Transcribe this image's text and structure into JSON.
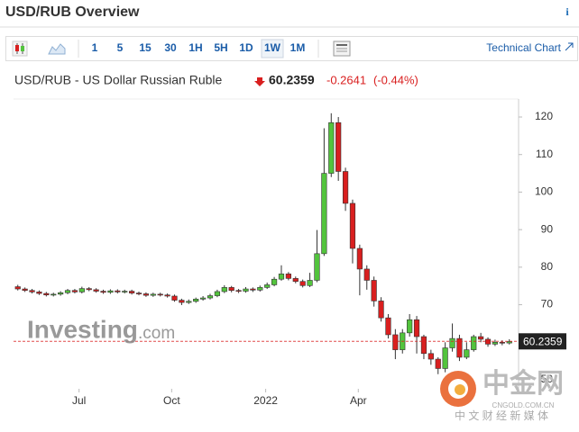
{
  "header": {
    "title": "USD/RUB Overview",
    "info": "i"
  },
  "toolbar": {
    "intervals": [
      "1",
      "5",
      "15",
      "30",
      "1H",
      "5H",
      "1D",
      "1W",
      "1M"
    ],
    "selected": "1W",
    "technical": "Technical Chart"
  },
  "quote": {
    "name": "USD/RUB - US Dollar Russian Ruble",
    "price": 60.2359,
    "change": -0.2641,
    "change_pct": "(-0.44%)"
  },
  "watermarks": {
    "investing": "Investing",
    "investing_suffix": ".com",
    "cngold": "中金网",
    "cngold_site": "CNGOLD.COM.CN",
    "cngold_tag": "中 文 财 经 新 媒 体"
  },
  "chart_data": {
    "type": "candlestick",
    "x": [
      0,
      1,
      2,
      3,
      4,
      5,
      6,
      7,
      8,
      9,
      10,
      11,
      12,
      13,
      14,
      15,
      16,
      17,
      18,
      19,
      20,
      21,
      22,
      23,
      24,
      25,
      26,
      27,
      28,
      29,
      30,
      31,
      32,
      33,
      34,
      35,
      36,
      37,
      38,
      39,
      40,
      41,
      42,
      43,
      44,
      45,
      46,
      47,
      48,
      49,
      50,
      51,
      52,
      53,
      54,
      55,
      56,
      57,
      58,
      59,
      60,
      61,
      62,
      63,
      64,
      65,
      66,
      67,
      68,
      69
    ],
    "series": {
      "open": [
        74.8,
        74.2,
        73.8,
        73.4,
        73.0,
        72.6,
        72.8,
        73.2,
        73.8,
        73.4,
        74.3,
        74.0,
        73.6,
        73.3,
        73.7,
        73.4,
        73.6,
        73.1,
        72.9,
        72.5,
        72.8,
        72.6,
        72.3,
        71.2,
        70.6,
        70.9,
        71.5,
        71.8,
        72.4,
        73.5,
        74.6,
        73.8,
        73.6,
        74.2,
        73.9,
        74.6,
        75.3,
        76.8,
        78.2,
        77.0,
        76.2,
        75.1,
        76.5,
        83.6,
        105.0,
        118.5,
        105.5,
        97.0,
        85.0,
        79.5,
        76.5,
        71.0,
        66.5,
        62.0,
        58.0,
        62.5,
        66.0,
        61.5,
        57.0,
        55.5,
        53.0,
        58.5,
        61.0,
        56.0,
        58.0,
        61.5,
        60.8,
        59.5,
        60.0,
        59.8
      ],
      "high": [
        75.3,
        74.6,
        74.2,
        73.8,
        73.4,
        73.2,
        73.6,
        74.2,
        74.2,
        74.8,
        74.7,
        74.4,
        74.0,
        74.1,
        74.1,
        74.0,
        74.0,
        73.5,
        73.3,
        73.2,
        73.2,
        73.0,
        72.7,
        71.6,
        71.4,
        71.9,
        72.3,
        72.9,
        74.0,
        75.2,
        75.0,
        74.2,
        74.7,
        74.6,
        75.1,
        75.9,
        77.4,
        80.5,
        78.7,
        77.5,
        76.7,
        78.5,
        89.9,
        117.0,
        121.0,
        120.0,
        106.5,
        98.0,
        86.0,
        80.5,
        77.5,
        72.0,
        67.5,
        63.5,
        63.5,
        67.5,
        67.0,
        62.0,
        58.0,
        56.0,
        60.0,
        65.0,
        62.0,
        60.0,
        62.0,
        62.5,
        61.3,
        60.7,
        60.5,
        60.8
      ],
      "low": [
        73.8,
        73.4,
        73.0,
        72.6,
        72.2,
        72.2,
        72.4,
        72.8,
        73.0,
        73.0,
        73.6,
        73.2,
        72.9,
        72.9,
        73.0,
        73.0,
        72.7,
        72.5,
        72.1,
        72.1,
        72.2,
        71.9,
        70.8,
        69.9,
        70.2,
        70.5,
        71.1,
        71.4,
        72.0,
        73.1,
        73.3,
        73.1,
        73.2,
        73.4,
        73.5,
        74.2,
        74.9,
        76.4,
        76.5,
        75.7,
        74.6,
        74.7,
        76.0,
        83.0,
        104.0,
        103.0,
        95.0,
        81.0,
        72.5,
        74.0,
        69.5,
        65.5,
        61.0,
        55.5,
        57.0,
        61.5,
        57.0,
        55.5,
        54.0,
        51.5,
        52.0,
        57.5,
        55.0,
        55.5,
        57.5,
        60.0,
        58.8,
        59.0,
        59.2,
        59.4
      ],
      "close": [
        74.2,
        73.8,
        73.4,
        73.0,
        72.6,
        72.8,
        73.2,
        73.8,
        73.4,
        74.3,
        74.0,
        73.6,
        73.3,
        73.7,
        73.4,
        73.6,
        73.1,
        72.9,
        72.5,
        72.8,
        72.6,
        72.3,
        71.2,
        70.6,
        70.9,
        71.5,
        71.8,
        72.4,
        73.5,
        74.6,
        73.8,
        73.6,
        74.2,
        73.9,
        74.6,
        75.3,
        76.8,
        78.2,
        77.0,
        76.2,
        75.1,
        76.5,
        83.6,
        105.0,
        118.5,
        105.5,
        97.0,
        85.0,
        79.5,
        76.5,
        71.0,
        66.5,
        62.0,
        58.0,
        62.5,
        66.0,
        61.5,
        57.0,
        55.5,
        53.0,
        58.5,
        61.0,
        56.0,
        58.0,
        61.5,
        60.8,
        59.5,
        60.0,
        59.8,
        60.2
      ]
    },
    "up_color": "#53c43d",
    "down_color": "#d91f1f",
    "xlim": [
      -0.6,
      70.3
    ],
    "xticks": [
      {
        "value": 8.6,
        "label": "Jul"
      },
      {
        "value": 21.6,
        "label": "Oct"
      },
      {
        "value": 34.8,
        "label": "2022"
      },
      {
        "value": 47.8,
        "label": "Apr"
      }
    ],
    "ylim": [
      47.6,
      124.8
    ],
    "yticks": [
      50,
      60,
      70,
      80,
      90,
      100,
      110,
      120
    ]
  }
}
